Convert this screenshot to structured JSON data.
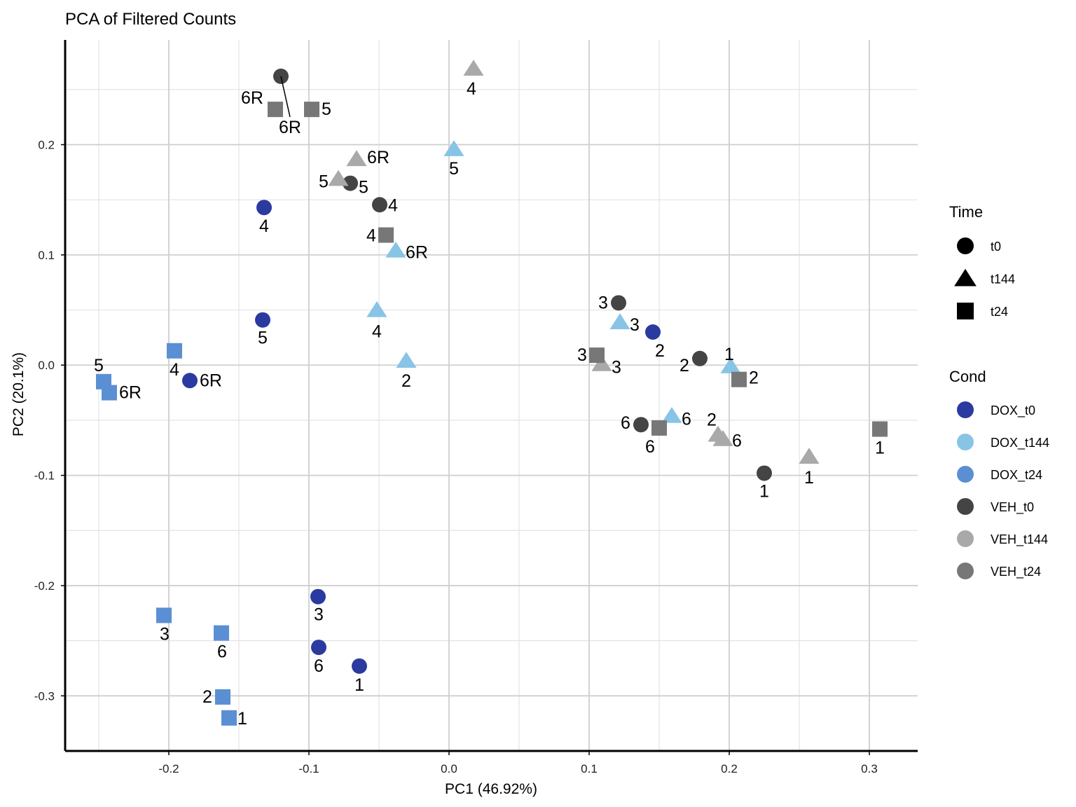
{
  "chart_data": {
    "type": "scatter",
    "title": "PCA of Filtered Counts",
    "xlabel": "PC1 (46.92%)",
    "ylabel": "PC2 (20.1%)",
    "xlim": [
      -0.274,
      0.3345
    ],
    "ylim": [
      -0.35,
      0.295
    ],
    "xticks": [
      "-0.2",
      "-0.1",
      "0.0",
      "0.1",
      "0.2",
      "0.3"
    ],
    "yticks": [
      "-0.3",
      "-0.2",
      "-0.1",
      "0.0",
      "0.1",
      "0.2"
    ],
    "grid": true,
    "legend_placement": "right",
    "legend_time": {
      "title": "Time",
      "items": [
        {
          "label": "t0",
          "shape": "circle"
        },
        {
          "label": "t144",
          "shape": "triangle"
        },
        {
          "label": "t24",
          "shape": "square"
        }
      ]
    },
    "legend_cond": {
      "title": "Cond",
      "items": [
        {
          "label": "DOX_t0",
          "color": "#2a3aa0"
        },
        {
          "label": "DOX_t144",
          "color": "#88c4e6"
        },
        {
          "label": "DOX_t24",
          "color": "#5b8fd3"
        },
        {
          "label": "VEH_t0",
          "color": "#444444"
        },
        {
          "label": "VEH_t144",
          "color": "#a9a9a9"
        },
        {
          "label": "VEH_t24",
          "color": "#777777"
        }
      ]
    },
    "series": [
      {
        "name": "DOX_t0",
        "shape": "circle",
        "color": "#2a3aa0",
        "points": [
          {
            "label": "4",
            "x": -0.132,
            "y": 0.143
          },
          {
            "label": "5",
            "x": -0.133,
            "y": 0.041
          },
          {
            "label": "6R",
            "x": -0.185,
            "y": -0.014
          },
          {
            "label": "3",
            "x": -0.0935,
            "y": -0.21
          },
          {
            "label": "6",
            "x": -0.093,
            "y": -0.256
          },
          {
            "label": "1",
            "x": -0.064,
            "y": -0.273
          },
          {
            "label": "2",
            "x": 0.1455,
            "y": 0.03
          }
        ]
      },
      {
        "name": "DOX_t144",
        "shape": "triangle",
        "color": "#88c4e6",
        "points": [
          {
            "label": "5",
            "x": 0.0035,
            "y": 0.196
          },
          {
            "label": "6R",
            "x": -0.038,
            "y": 0.104
          },
          {
            "label": "4",
            "x": -0.0515,
            "y": 0.05
          },
          {
            "label": "2",
            "x": -0.0305,
            "y": 0.004
          },
          {
            "label": "3",
            "x": 0.122,
            "y": 0.039
          },
          {
            "label": "1",
            "x": 0.201,
            "y": -0.001
          },
          {
            "label": "6",
            "x": 0.159,
            "y": -0.046
          }
        ]
      },
      {
        "name": "DOX_t24",
        "shape": "square",
        "color": "#5b8fd3",
        "points": [
          {
            "label": "4",
            "x": -0.196,
            "y": 0.013
          },
          {
            "label": "5",
            "x": -0.2465,
            "y": -0.015
          },
          {
            "label": "6R",
            "x": -0.2425,
            "y": -0.025
          },
          {
            "label": "3",
            "x": -0.2035,
            "y": -0.227
          },
          {
            "label": "6",
            "x": -0.1625,
            "y": -0.243
          },
          {
            "label": "2",
            "x": -0.1615,
            "y": -0.301
          },
          {
            "label": "1",
            "x": -0.157,
            "y": -0.32
          }
        ]
      },
      {
        "name": "VEH_t0",
        "shape": "circle",
        "color": "#444444",
        "points": [
          {
            "label": "6R",
            "x": -0.12,
            "y": 0.262
          },
          {
            "label": "5",
            "x": -0.0705,
            "y": 0.165
          },
          {
            "label": "4",
            "x": -0.0495,
            "y": 0.1455
          },
          {
            "label": "3",
            "x": 0.121,
            "y": 0.0565
          },
          {
            "label": "2",
            "x": 0.179,
            "y": 0.006
          },
          {
            "label": "6",
            "x": 0.137,
            "y": -0.054
          },
          {
            "label": "1",
            "x": 0.225,
            "y": -0.098
          }
        ]
      },
      {
        "name": "VEH_t144",
        "shape": "triangle",
        "color": "#a9a9a9",
        "points": [
          {
            "label": "4",
            "x": 0.0175,
            "y": 0.269
          },
          {
            "label": "6R",
            "x": -0.066,
            "y": 0.187
          },
          {
            "label": "5",
            "x": -0.079,
            "y": 0.169
          },
          {
            "label": "3",
            "x": 0.109,
            "y": 0.001
          },
          {
            "label": "2",
            "x": 0.192,
            "y": -0.063
          },
          {
            "label": "6",
            "x": 0.1955,
            "y": -0.067
          },
          {
            "label": "1",
            "x": 0.257,
            "y": -0.083
          }
        ]
      },
      {
        "name": "VEH_t24",
        "shape": "square",
        "color": "#777777",
        "points": [
          {
            "label": "6R",
            "x": -0.124,
            "y": 0.232
          },
          {
            "label": "5",
            "x": -0.098,
            "y": 0.232
          },
          {
            "label": "4",
            "x": -0.045,
            "y": 0.118
          },
          {
            "label": "3",
            "x": 0.1055,
            "y": 0.009
          },
          {
            "label": "2",
            "x": 0.207,
            "y": -0.013
          },
          {
            "label": "6",
            "x": 0.15,
            "y": -0.057
          },
          {
            "label": "1",
            "x": 0.3075,
            "y": -0.058
          }
        ]
      }
    ]
  }
}
